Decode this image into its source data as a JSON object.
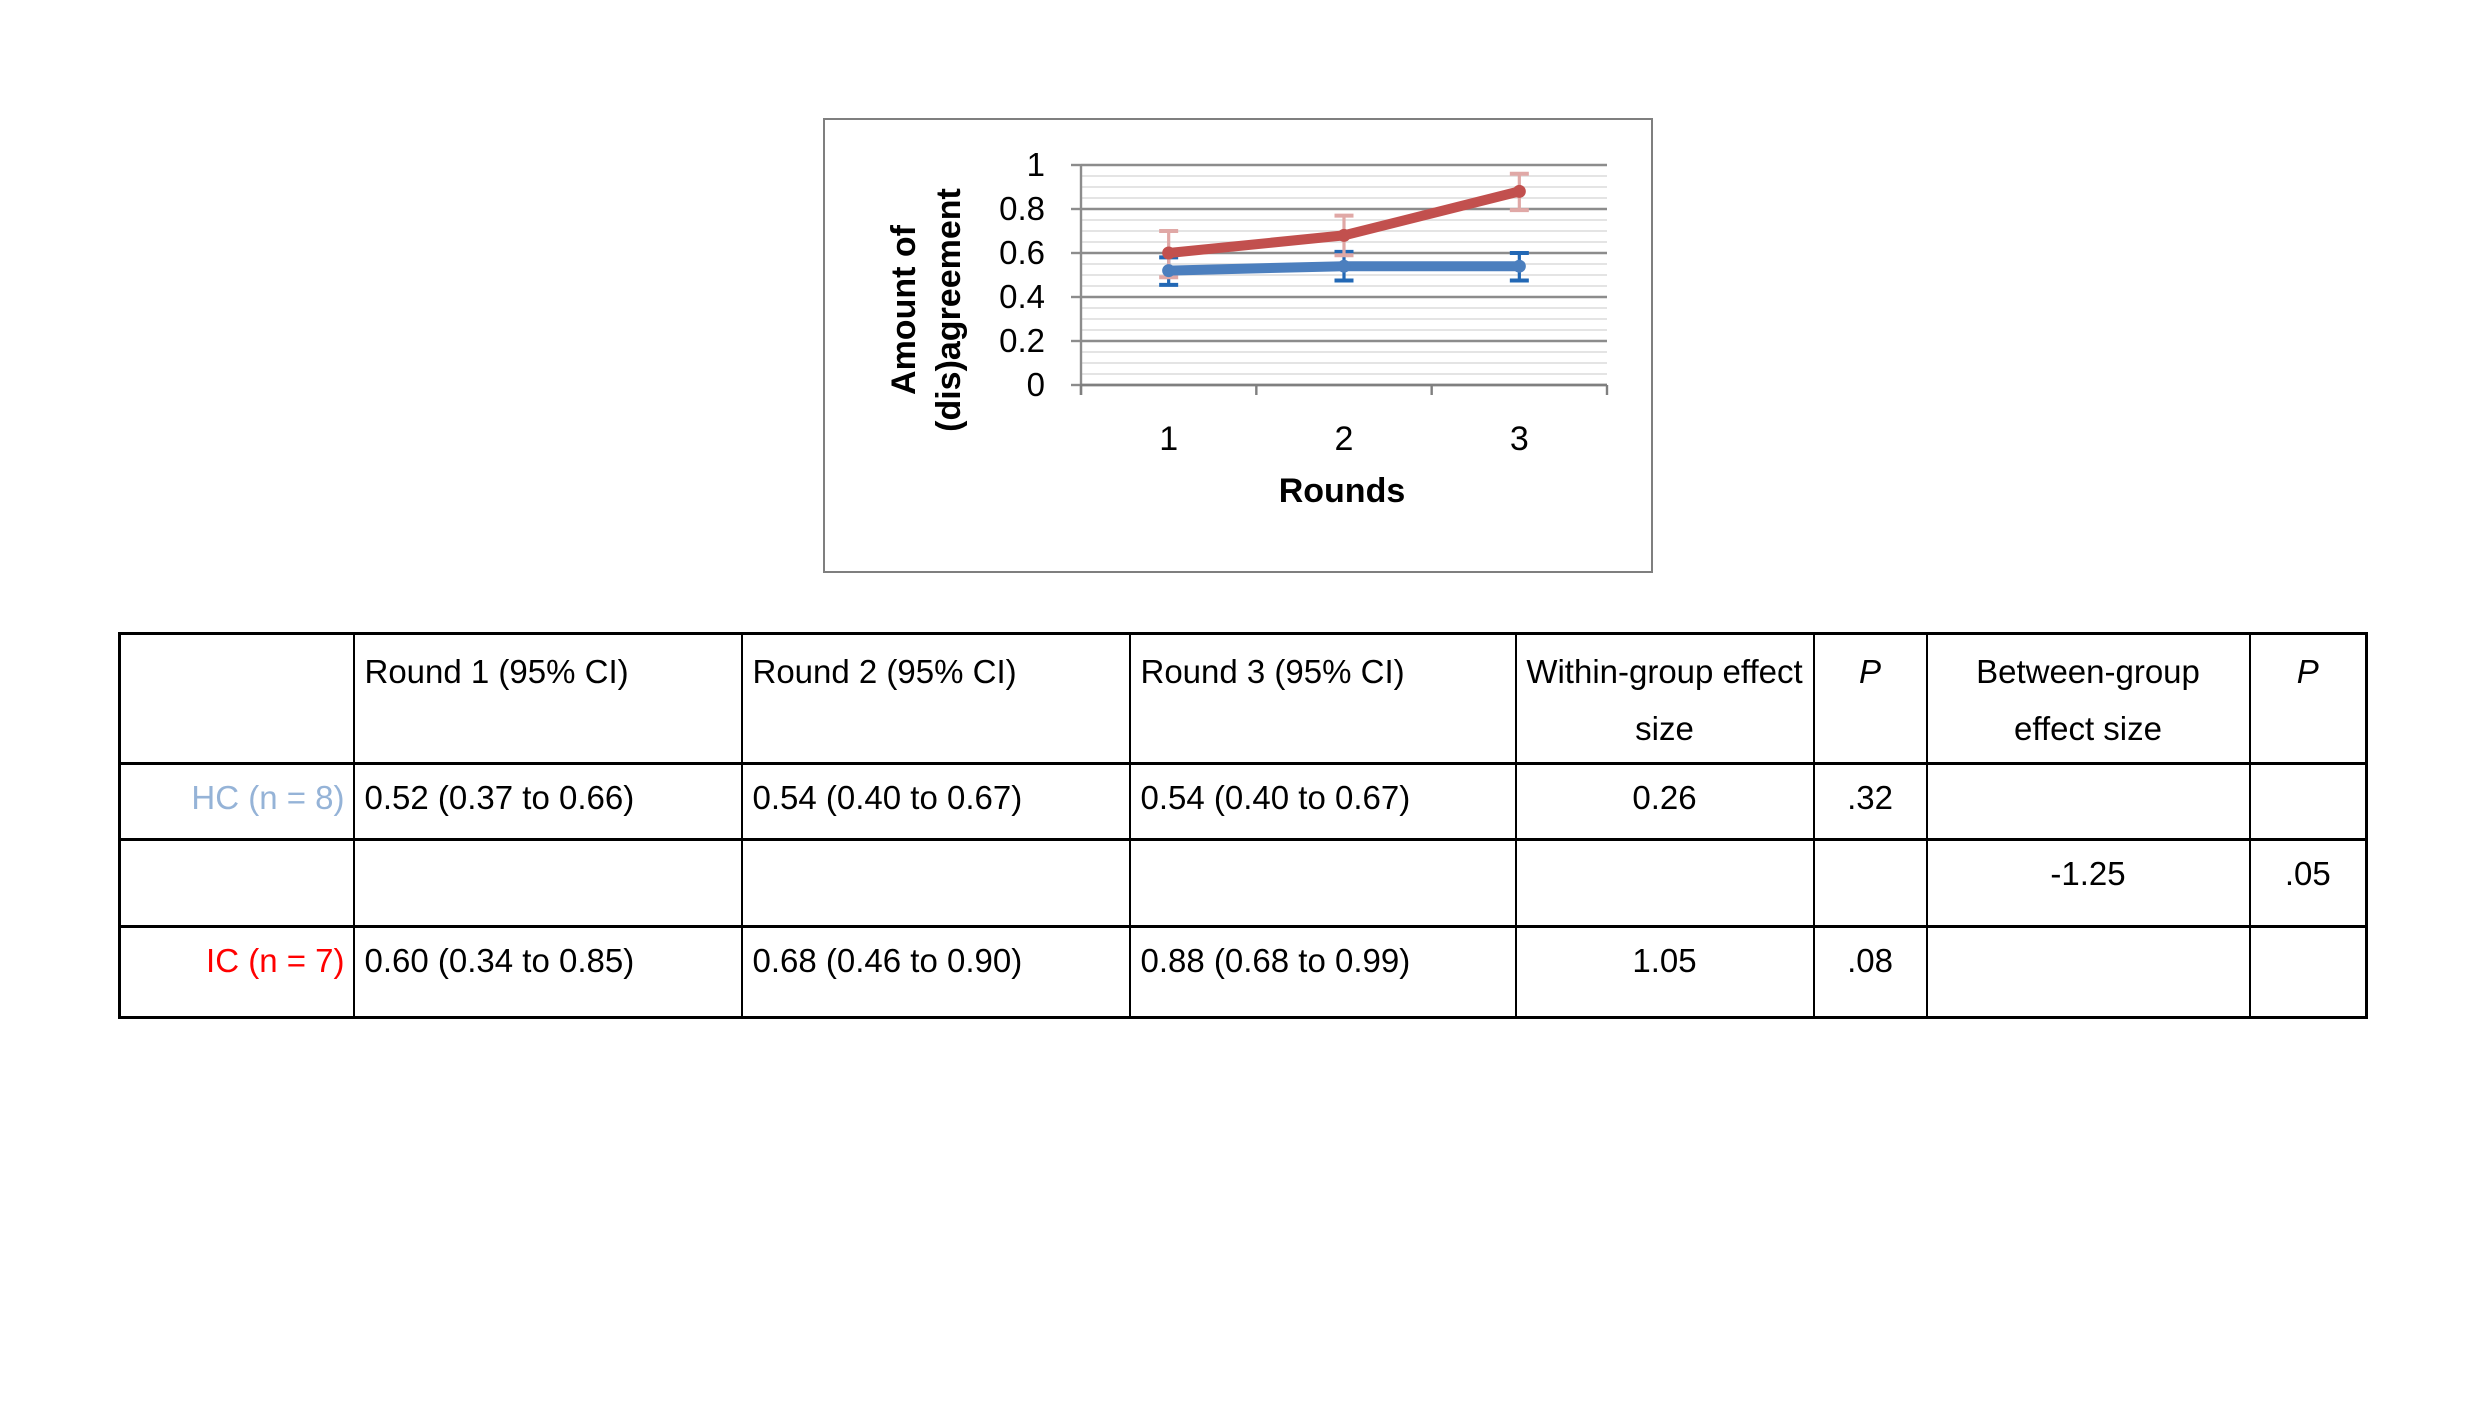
{
  "colors": {
    "hc_label": "#95B3D7",
    "ic_label": "#FF0000",
    "hc_line": "#4C7FBE",
    "ic_line": "#C2504E",
    "hc_error": "#2268B5",
    "ic_error": "#E0A8A6",
    "major_grid": "#8C8C8C",
    "minor_grid": "#DCDCDC",
    "axis": "#7F7F7F",
    "chart_border": "#7F7F7F",
    "table_border": "#000000"
  },
  "chart": {
    "y_axis_title_line1": "Amount of",
    "y_axis_title_line2": "(dis)agreement",
    "x_axis_title": "Rounds"
  },
  "chart_data": {
    "type": "line",
    "x": [
      1,
      2,
      3
    ],
    "xtick_labels": [
      "1",
      "2",
      "3"
    ],
    "xlabel": "Rounds",
    "ylabel": "Amount of (dis)agreement",
    "ylim": [
      0,
      1
    ],
    "yticks": [
      0,
      0.2,
      0.4,
      0.6,
      0.8,
      1
    ],
    "ytick_labels": [
      "0",
      "0.2",
      "0.4",
      "0.6",
      "0.8",
      "1"
    ],
    "minor_unit": 0.05,
    "grid": true,
    "legend_position": "none",
    "series": [
      {
        "name": "HC (n = 8)",
        "color": "#4C7FBE",
        "error_color": "#2268B5",
        "values": [
          0.52,
          0.54,
          0.54
        ],
        "error_low": [
          0.455,
          0.475,
          0.475
        ],
        "error_high": [
          0.58,
          0.605,
          0.6
        ]
      },
      {
        "name": "IC (n = 7)",
        "color": "#C2504E",
        "error_color": "#E0A8A6",
        "values": [
          0.6,
          0.68,
          0.88
        ],
        "error_low": [
          0.49,
          0.59,
          0.795
        ],
        "error_high": [
          0.7,
          0.77,
          0.96
        ]
      }
    ]
  },
  "table": {
    "headers": [
      "",
      "Round 1 (95% CI)",
      "Round 2 (95% CI)",
      "Round 3 (95% CI)",
      "Within-group effect size",
      "P",
      "Between-group effect size",
      "P"
    ],
    "rows": [
      {
        "label": "HC (n = 8)",
        "cells": [
          "0.52 (0.37 to 0.66)",
          "0.54 (0.40 to 0.67)",
          "0.54 (0.40 to 0.67)",
          "0.26",
          ".32",
          "",
          ""
        ]
      },
      {
        "label": "",
        "cells": [
          "",
          "",
          "",
          "",
          "",
          "-1.25",
          ".05"
        ]
      },
      {
        "label": "IC (n = 7)",
        "cells": [
          "0.60 (0.34 to 0.85)",
          "0.68 (0.46 to 0.90)",
          "0.88 (0.68 to 0.99)",
          "1.05",
          ".08",
          "",
          ""
        ]
      }
    ]
  }
}
